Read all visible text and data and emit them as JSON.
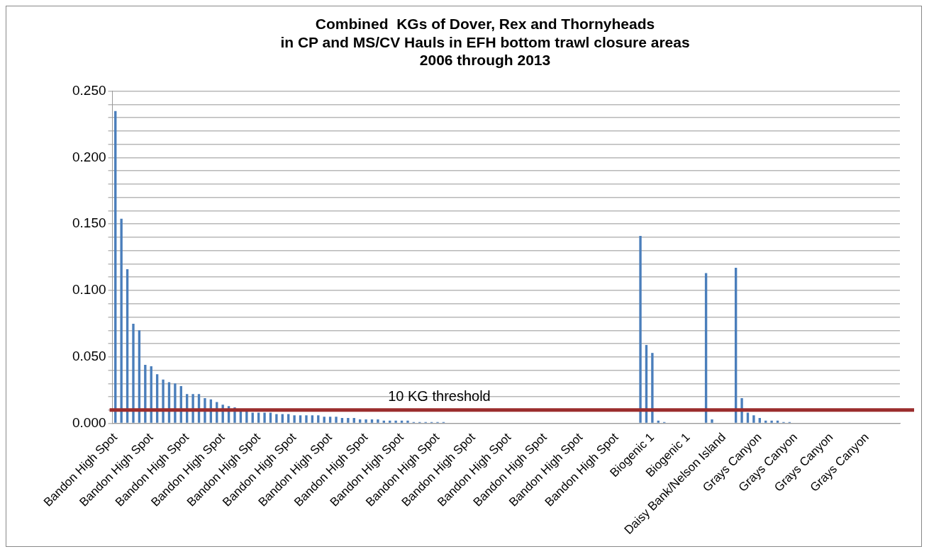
{
  "chart_data": {
    "type": "bar",
    "title": "Combined  KGs of Dover, Rex and Thornyheads\nin CP and MS/CV Hauls in EFH bottom trawl closure areas\n2006 through 2013",
    "categories": [
      "Bandon High Spot",
      null,
      null,
      null,
      null,
      null,
      "Bandon High Spot",
      null,
      null,
      null,
      null,
      null,
      "Bandon High Spot",
      null,
      null,
      null,
      null,
      null,
      "Bandon High Spot",
      null,
      null,
      null,
      null,
      null,
      "Bandon High Spot",
      null,
      null,
      null,
      null,
      null,
      "Bandon High Spot",
      null,
      null,
      null,
      null,
      null,
      "Bandon High Spot",
      null,
      null,
      null,
      null,
      null,
      "Bandon High Spot",
      null,
      null,
      null,
      null,
      null,
      "Bandon High Spot",
      null,
      null,
      null,
      null,
      null,
      "Bandon High Spot",
      null,
      null,
      null,
      null,
      null,
      "Bandon High Spot",
      null,
      null,
      null,
      null,
      null,
      "Bandon High Spot",
      null,
      null,
      null,
      null,
      null,
      "Bandon High Spot",
      null,
      null,
      null,
      null,
      null,
      "Bandon High Spot",
      null,
      null,
      null,
      null,
      null,
      "Bandon High Spot",
      null,
      null,
      null,
      null,
      null,
      "Biogenic 1",
      null,
      null,
      null,
      null,
      null,
      "Biogenic 1",
      null,
      null,
      null,
      null,
      null,
      "Daisy Bank/Nelson Island",
      null,
      null,
      null,
      null,
      null,
      "Grays Canyon",
      null,
      null,
      null,
      null,
      null,
      "Grays Canyon",
      null,
      null,
      null,
      null,
      null,
      "Grays Canyon",
      null,
      null,
      null,
      null,
      null,
      "Grays Canyon",
      null,
      null,
      null,
      null,
      null
    ],
    "values": [
      0.235,
      0.154,
      0.116,
      0.075,
      0.07,
      0.044,
      0.043,
      0.037,
      0.033,
      0.031,
      0.03,
      0.028,
      0.022,
      0.022,
      0.022,
      0.019,
      0.018,
      0.016,
      0.014,
      0.013,
      0.012,
      0.01,
      0.009,
      0.008,
      0.008,
      0.008,
      0.008,
      0.007,
      0.007,
      0.007,
      0.006,
      0.006,
      0.006,
      0.006,
      0.006,
      0.005,
      0.005,
      0.005,
      0.004,
      0.004,
      0.004,
      0.003,
      0.003,
      0.003,
      0.003,
      0.002,
      0.002,
      0.002,
      0.002,
      0.002,
      0.001,
      0.001,
      0.001,
      0.001,
      0.001,
      0.001,
      0,
      0,
      0,
      0,
      0,
      0,
      0,
      0,
      0,
      0,
      0,
      0,
      0,
      0,
      0,
      0,
      0,
      0,
      0,
      0,
      0,
      0,
      0,
      0,
      0,
      0,
      0,
      0,
      0,
      0,
      0,
      0,
      0.141,
      0.059,
      0.053,
      0.002,
      0.001,
      0,
      0,
      0,
      0,
      0,
      0,
      0.113,
      0.003,
      0,
      0,
      0,
      0.117,
      0.019,
      0.008,
      0.006,
      0.004,
      0.002,
      0.002,
      0.002,
      0.001,
      0.001,
      0,
      0,
      0,
      0,
      0,
      0,
      0,
      0,
      0,
      0,
      0,
      0,
      0,
      0,
      0,
      0,
      0,
      0
    ],
    "color": "#4a7ebb",
    "ylim": [
      0,
      0.25
    ],
    "yticks": [
      {
        "value": 0,
        "label": "0.000"
      },
      {
        "value": 0.01,
        "label": null
      },
      {
        "value": 0.02,
        "label": null
      },
      {
        "value": 0.03,
        "label": null
      },
      {
        "value": 0.04,
        "label": null
      },
      {
        "value": 0.05,
        "label": "0.050"
      },
      {
        "value": 0.06,
        "label": null
      },
      {
        "value": 0.07,
        "label": null
      },
      {
        "value": 0.08,
        "label": null
      },
      {
        "value": 0.09,
        "label": null
      },
      {
        "value": 0.1,
        "label": "0.100"
      },
      {
        "value": 0.11,
        "label": null
      },
      {
        "value": 0.12,
        "label": null
      },
      {
        "value": 0.13,
        "label": null
      },
      {
        "value": 0.14,
        "label": null
      },
      {
        "value": 0.15,
        "label": "0.150"
      },
      {
        "value": 0.16,
        "label": null
      },
      {
        "value": 0.17,
        "label": null
      },
      {
        "value": 0.18,
        "label": null
      },
      {
        "value": 0.19,
        "label": null
      },
      {
        "value": 0.2,
        "label": "0.200"
      },
      {
        "value": 0.21,
        "label": null
      },
      {
        "value": 0.22,
        "label": null
      },
      {
        "value": 0.23,
        "label": null
      },
      {
        "value": 0.24,
        "label": null
      },
      {
        "value": 0.25,
        "label": "0.250"
      }
    ],
    "grid": "y",
    "legend": false,
    "ref_lines": [
      {
        "axis": "y",
        "value": 0.01,
        "label": "10 KG threshold",
        "color": "#9b2d2d"
      }
    ]
  }
}
